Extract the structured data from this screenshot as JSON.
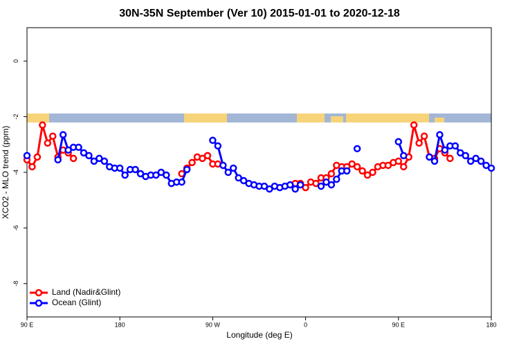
{
  "chart_data": {
    "type": "line",
    "title": "30N-35N September (Ver 10)   2015-01-01 to 2020-12-18",
    "xlabel": "Longitude (deg E)",
    "ylabel": "XCO2 - MLO trend (ppm)",
    "x": [
      90,
      95,
      100,
      105,
      110,
      115,
      120,
      125,
      130,
      135,
      140,
      145,
      150,
      155,
      160,
      165,
      170,
      175,
      180,
      185,
      190,
      195,
      200,
      205,
      210,
      215,
      220,
      225,
      230,
      235,
      240,
      245,
      250,
      255,
      260,
      265,
      270,
      275,
      280,
      285,
      290,
      295,
      300,
      305,
      310,
      315,
      320,
      325,
      330,
      335,
      340,
      345,
      350,
      355,
      360,
      365,
      370,
      375,
      380,
      385,
      390,
      395,
      400,
      405,
      410,
      415,
      420,
      425,
      430,
      435,
      440,
      445,
      450,
      455,
      460,
      465,
      470,
      475,
      480,
      485,
      490,
      495,
      500,
      505,
      510,
      515,
      520,
      525,
      530,
      535,
      540
    ],
    "series": [
      {
        "name": "Land (Nadir&Glint)",
        "color": "#ff0000",
        "values": [
          -3.55,
          -3.8,
          -3.45,
          -2.3,
          -2.95,
          -2.7,
          -3.45,
          -3.2,
          -3.3,
          -3.5,
          null,
          null,
          null,
          null,
          null,
          null,
          null,
          null,
          null,
          null,
          null,
          null,
          null,
          null,
          null,
          null,
          null,
          null,
          null,
          null,
          -4.05,
          -3.85,
          -3.65,
          -3.45,
          -3.5,
          -3.4,
          -3.7,
          -3.7,
          null,
          null,
          null,
          null,
          null,
          null,
          null,
          null,
          null,
          null,
          null,
          null,
          null,
          null,
          -4.4,
          -4.4,
          -4.55,
          -4.35,
          -4.4,
          -4.2,
          -4.2,
          -4.05,
          -3.75,
          -3.8,
          -3.8,
          -3.7,
          -3.8,
          -3.95,
          -4.1,
          -4.0,
          -3.8,
          -3.75,
          -3.75,
          -3.65,
          -3.6,
          -3.8,
          -3.45,
          -2.3,
          -2.95,
          -2.7,
          -3.45,
          -3.5,
          -3.15,
          -3.3,
          -3.5,
          null,
          null,
          null,
          null,
          null,
          null,
          null,
          null
        ]
      },
      {
        "name": "Ocean (Glint)",
        "color": "#0000ff",
        "values": [
          -3.4,
          null,
          null,
          null,
          null,
          null,
          -3.55,
          -2.65,
          -3.2,
          -3.1,
          -3.1,
          -3.3,
          -3.4,
          -3.6,
          -3.5,
          -3.6,
          -3.8,
          -3.85,
          -3.85,
          -4.1,
          -3.9,
          -3.9,
          -4.05,
          -4.15,
          -4.1,
          -4.1,
          -4.0,
          -4.1,
          -4.4,
          -4.35,
          -4.35,
          -3.9,
          null,
          null,
          null,
          null,
          -2.85,
          -3.05,
          -3.75,
          -4.0,
          -3.85,
          -4.2,
          -4.3,
          -4.4,
          -4.45,
          -4.5,
          -4.5,
          -4.6,
          -4.5,
          -4.55,
          -4.5,
          -4.45,
          -4.6,
          -4.45,
          null,
          null,
          null,
          -4.5,
          -4.35,
          -4.45,
          -4.25,
          -3.95,
          -3.95,
          null,
          -3.15,
          null,
          null,
          null,
          null,
          null,
          null,
          null,
          -2.9,
          -3.4,
          null,
          null,
          null,
          null,
          -3.45,
          -3.6,
          -2.65,
          -3.2,
          -3.05,
          -3.05,
          -3.3,
          -3.4,
          -3.6,
          -3.5,
          -3.6,
          -3.75,
          -3.85
        ]
      }
    ],
    "xlim": [
      90,
      540
    ],
    "ylim": [
      -9.2,
      1.2
    ],
    "xticks": [
      {
        "value": 90,
        "label": "90 E"
      },
      180,
      {
        "value": 270,
        "label": "90 W"
      },
      {
        "value": 360,
        "label": "0"
      },
      {
        "value": 450,
        "label": "90 E"
      },
      {
        "value": 540,
        "label": "180"
      }
    ],
    "yticks": [
      -8,
      -6,
      -4,
      -2,
      0
    ],
    "legend": "bottomleft"
  }
}
